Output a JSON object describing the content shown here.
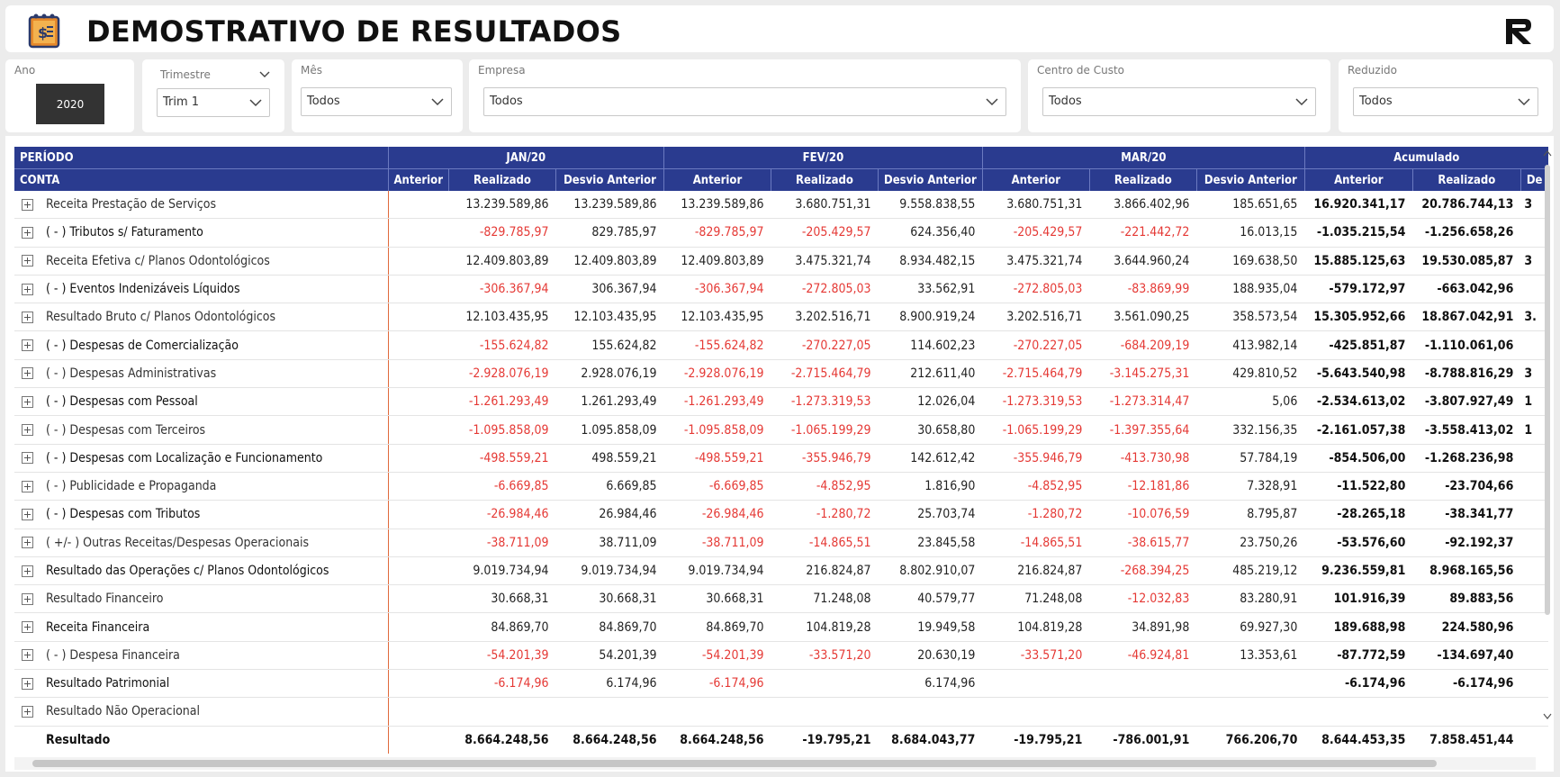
{
  "header": {
    "title": "DEMOSTRATIVO DE RESULTADOS",
    "logo_icon": "calendar-money-icon",
    "brand_icon": "brand-logo-icon"
  },
  "filters": {
    "ano": {
      "label": "Ano",
      "value": "2020"
    },
    "trimestre": {
      "label": "Trimestre",
      "value": "Trim 1"
    },
    "mes": {
      "label": "Mês",
      "value": "Todos"
    },
    "empresa": {
      "label": "Empresa",
      "value": "Todos"
    },
    "centro_custo": {
      "label": "Centro de Custo",
      "value": "Todos"
    },
    "reduzido": {
      "label": "Reduzido",
      "value": "Todos"
    }
  },
  "table": {
    "periodo_label": "PERÍODO",
    "conta_label": "CONTA",
    "groups": [
      "JAN/20",
      "FEV/20",
      "MAR/20",
      "Acumulado"
    ],
    "sub": {
      "anterior": "Anterior",
      "realizado": "Realizado",
      "desvio": "Desvio Anterior",
      "desvio_trunc": "De"
    },
    "rows": [
      {
        "label": "Receita Prestação de Serviços",
        "bold": false,
        "v": [
          "",
          "13.239.589,86",
          "13.239.589,86",
          "13.239.589,86",
          "3.680.751,31",
          "9.558.838,55",
          "3.680.751,31",
          "3.866.402,96",
          "185.651,65",
          "16.920.341,17",
          "20.786.744,13",
          "3"
        ]
      },
      {
        "label": "( - ) Tributos s/ Faturamento",
        "bold": true,
        "v": [
          "",
          "-829.785,97",
          "829.785,97",
          "-829.785,97",
          "-205.429,57",
          "624.356,40",
          "-205.429,57",
          "-221.442,72",
          "16.013,15",
          "-1.035.215,54",
          "-1.256.658,26",
          ""
        ]
      },
      {
        "label": "Receita Efetiva c/ Planos Odontológicos",
        "bold": false,
        "v": [
          "",
          "12.409.803,89",
          "12.409.803,89",
          "12.409.803,89",
          "3.475.321,74",
          "8.934.482,15",
          "3.475.321,74",
          "3.644.960,24",
          "169.638,50",
          "15.885.125,63",
          "19.530.085,87",
          "3"
        ]
      },
      {
        "label": "( - ) Eventos Indenizáveis Líquidos",
        "bold": true,
        "v": [
          "",
          "-306.367,94",
          "306.367,94",
          "-306.367,94",
          "-272.805,03",
          "33.562,91",
          "-272.805,03",
          "-83.869,99",
          "188.935,04",
          "-579.172,97",
          "-663.042,96",
          ""
        ]
      },
      {
        "label": "Resultado Bruto c/ Planos Odontológicos",
        "bold": false,
        "v": [
          "",
          "12.103.435,95",
          "12.103.435,95",
          "12.103.435,95",
          "3.202.516,71",
          "8.900.919,24",
          "3.202.516,71",
          "3.561.090,25",
          "358.573,54",
          "15.305.952,66",
          "18.867.042,91",
          "3."
        ]
      },
      {
        "label": "( - ) Despesas de Comercialização",
        "bold": true,
        "v": [
          "",
          "-155.624,82",
          "155.624,82",
          "-155.624,82",
          "-270.227,05",
          "114.602,23",
          "-270.227,05",
          "-684.209,19",
          "413.982,14",
          "-425.851,87",
          "-1.110.061,06",
          ""
        ]
      },
      {
        "label": "( - ) Despesas Administrativas",
        "bold": false,
        "v": [
          "",
          "-2.928.076,19",
          "2.928.076,19",
          "-2.928.076,19",
          "-2.715.464,79",
          "212.611,40",
          "-2.715.464,79",
          "-3.145.275,31",
          "429.810,52",
          "-5.643.540,98",
          "-8.788.816,29",
          "3"
        ]
      },
      {
        "label": "( - ) Despesas com Pessoal",
        "bold": true,
        "v": [
          "",
          "-1.261.293,49",
          "1.261.293,49",
          "-1.261.293,49",
          "-1.273.319,53",
          "12.026,04",
          "-1.273.319,53",
          "-1.273.314,47",
          "5,06",
          "-2.534.613,02",
          "-3.807.927,49",
          "1"
        ]
      },
      {
        "label": "( - ) Despesas com Terceiros",
        "bold": false,
        "v": [
          "",
          "-1.095.858,09",
          "1.095.858,09",
          "-1.095.858,09",
          "-1.065.199,29",
          "30.658,80",
          "-1.065.199,29",
          "-1.397.355,64",
          "332.156,35",
          "-2.161.057,38",
          "-3.558.413,02",
          "1"
        ]
      },
      {
        "label": "( - ) Despesas com Localização e Funcionamento",
        "bold": true,
        "v": [
          "",
          "-498.559,21",
          "498.559,21",
          "-498.559,21",
          "-355.946,79",
          "142.612,42",
          "-355.946,79",
          "-413.730,98",
          "57.784,19",
          "-854.506,00",
          "-1.268.236,98",
          ""
        ]
      },
      {
        "label": "( - ) Publicidade e Propaganda",
        "bold": false,
        "v": [
          "",
          "-6.669,85",
          "6.669,85",
          "-6.669,85",
          "-4.852,95",
          "1.816,90",
          "-4.852,95",
          "-12.181,86",
          "7.328,91",
          "-11.522,80",
          "-23.704,66",
          ""
        ]
      },
      {
        "label": "( - ) Despesas com Tributos",
        "bold": true,
        "v": [
          "",
          "-26.984,46",
          "26.984,46",
          "-26.984,46",
          "-1.280,72",
          "25.703,74",
          "-1.280,72",
          "-10.076,59",
          "8.795,87",
          "-28.265,18",
          "-38.341,77",
          ""
        ]
      },
      {
        "label": "( +/- ) Outras Receitas/Despesas Operacionais",
        "bold": false,
        "v": [
          "",
          "-38.711,09",
          "38.711,09",
          "-38.711,09",
          "-14.865,51",
          "23.845,58",
          "-14.865,51",
          "-38.615,77",
          "23.750,26",
          "-53.576,60",
          "-92.192,37",
          ""
        ]
      },
      {
        "label": "Resultado das Operações c/ Planos Odontológicos",
        "bold": true,
        "v": [
          "",
          "9.019.734,94",
          "9.019.734,94",
          "9.019.734,94",
          "216.824,87",
          "8.802.910,07",
          "216.824,87",
          "-268.394,25",
          "485.219,12",
          "9.236.559,81",
          "8.968.165,56",
          ""
        ]
      },
      {
        "label": "Resultado Financeiro",
        "bold": false,
        "v": [
          "",
          "30.668,31",
          "30.668,31",
          "30.668,31",
          "71.248,08",
          "40.579,77",
          "71.248,08",
          "-12.032,83",
          "83.280,91",
          "101.916,39",
          "89.883,56",
          ""
        ]
      },
      {
        "label": "Receita Financeira",
        "bold": true,
        "v": [
          "",
          "84.869,70",
          "84.869,70",
          "84.869,70",
          "104.819,28",
          "19.949,58",
          "104.819,28",
          "34.891,98",
          "69.927,30",
          "189.688,98",
          "224.580,96",
          ""
        ]
      },
      {
        "label": "( - ) Despesa Financeira",
        "bold": false,
        "v": [
          "",
          "-54.201,39",
          "54.201,39",
          "-54.201,39",
          "-33.571,20",
          "20.630,19",
          "-33.571,20",
          "-46.924,81",
          "13.353,61",
          "-87.772,59",
          "-134.697,40",
          ""
        ]
      },
      {
        "label": "Resultado Patrimonial",
        "bold": true,
        "v": [
          "",
          "-6.174,96",
          "6.174,96",
          "-6.174,96",
          "",
          "6.174,96",
          "",
          "",
          "",
          "-6.174,96",
          "-6.174,96",
          ""
        ]
      },
      {
        "label": "Resultado Não Operacional",
        "bold": false,
        "v": [
          "",
          "",
          "",
          "",
          "",
          "",
          "",
          "",
          "",
          "",
          "",
          ""
        ]
      }
    ],
    "total": {
      "label": "Resultado",
      "v": [
        "",
        "8.664.248,56",
        "8.664.248,56",
        "8.664.248,56",
        "-19.795,21",
        "8.684.043,77",
        "-19.795,21",
        "-786.001,91",
        "766.206,70",
        "8.644.453,35",
        "7.858.451,44",
        ""
      ]
    }
  }
}
